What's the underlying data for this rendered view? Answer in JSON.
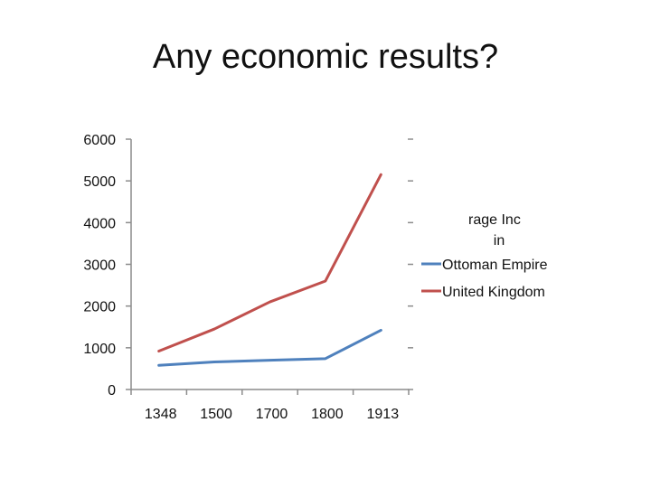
{
  "slide": {
    "title": "Any economic results?"
  },
  "chart_data": {
    "type": "line",
    "title": "",
    "legend_title_lines": [
      "rage Inc",
      "in"
    ],
    "legend_position": "right",
    "categories": [
      "1348",
      "1500",
      "1700",
      "1800",
      "1913"
    ],
    "ylim": [
      0,
      6000
    ],
    "yticks": [
      "0",
      "1000",
      "2000",
      "3000",
      "4000",
      "5000",
      "6000"
    ],
    "grid": false,
    "series": [
      {
        "name": "Ottoman Empire",
        "values": [
          580,
          660,
          700,
          740,
          1420
        ],
        "color": "#4f81bd"
      },
      {
        "name": "United Kingdom",
        "values": [
          920,
          1450,
          2100,
          2600,
          5150
        ],
        "color": "#c0504d"
      }
    ]
  }
}
